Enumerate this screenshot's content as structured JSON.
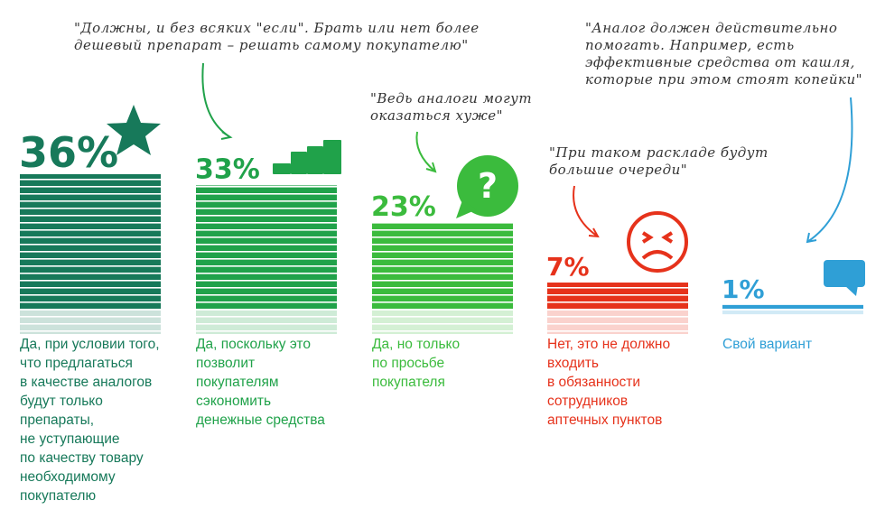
{
  "chart_data": {
    "type": "bar",
    "categories": [
      "Да, при условии того,\nчто предлагаться\nв качестве аналогов\nбудут только\nпрепараты,\nне уступающие\nпо качеству товару\nнеобходимому\nпокупателю",
      "Да, поскольку это\nпозволит\nпокупателям\nсэкономить\nденежные средства",
      "Да, но только\nпо просьбе\nпокупателя",
      "Нет, это не должно\nвходить\nв обязанности\nсотрудников\nаптечных пунктов",
      "Свой вариант"
    ],
    "values": [
      36,
      33,
      23,
      7,
      1
    ],
    "value_labels": [
      "36%",
      "33%",
      "23%",
      "7%",
      "1%"
    ],
    "colors": [
      "#17795a",
      "#20a24a",
      "#3bbb3d",
      "#e6321b",
      "#2f9fd6"
    ],
    "annotations": [
      "\"Должны, и без всяких \"если\". Брать или нет более\nдешевый препарат – решать самому покупателю\"",
      "\"Ведь аналоги могут\nоказаться хуже\"",
      "\"При таком раскладе будут\nбольшие очереди\"",
      "\"Аналог должен действительно\nпомогать. Например, есть\nэффективные средства от кашля,\nкоторые при этом стоят копейки\""
    ]
  }
}
